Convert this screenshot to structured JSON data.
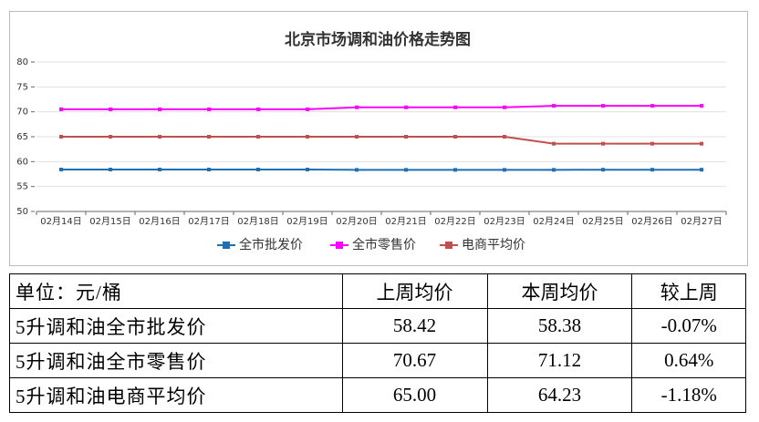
{
  "chart_data": {
    "type": "line",
    "title": "北京市场调和油价格走势图",
    "categories": [
      "02月14日",
      "02月15日",
      "02月16日",
      "02月17日",
      "02月18日",
      "02月19日",
      "02月20日",
      "02月21日",
      "02月22日",
      "02月23日",
      "02月24日",
      "02月25日",
      "02月26日",
      "02月27日"
    ],
    "series": [
      {
        "name": "全市批发价",
        "color": "#1f6fb4",
        "values": [
          58.42,
          58.42,
          58.42,
          58.42,
          58.42,
          58.42,
          58.35,
          58.35,
          58.35,
          58.35,
          58.35,
          58.38,
          58.38,
          58.38
        ]
      },
      {
        "name": "全市零售价",
        "color": "#ff00ff",
        "values": [
          70.5,
          70.5,
          70.5,
          70.5,
          70.5,
          70.5,
          70.9,
          70.9,
          70.9,
          70.9,
          71.2,
          71.2,
          71.2,
          71.2
        ]
      },
      {
        "name": "电商平均价",
        "color": "#c0504d",
        "values": [
          65,
          65,
          65,
          65,
          65,
          65,
          65,
          65,
          65,
          65,
          63.6,
          63.6,
          63.6,
          63.6
        ]
      }
    ],
    "ylim": [
      50,
      80
    ],
    "yticks": [
      50,
      55,
      60,
      65,
      70,
      75,
      80
    ],
    "grid": true,
    "legend": "bottom"
  },
  "table": {
    "rows": [
      [
        "单位：元/桶",
        "上周均价",
        "本周均价",
        "较上周"
      ],
      [
        "5升调和油全市批发价",
        "58.42",
        "58.38",
        "-0.07%"
      ],
      [
        "5升调和油全市零售价",
        "70.67",
        "71.12",
        "0.64%"
      ],
      [
        "5升调和油电商平均价",
        "65.00",
        "64.23",
        "-1.18%"
      ]
    ]
  }
}
